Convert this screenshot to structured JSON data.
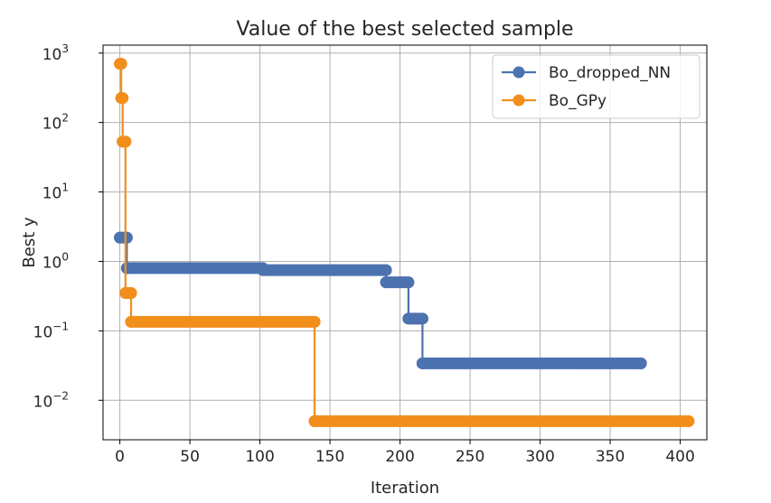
{
  "chart_data": {
    "type": "line",
    "title": "Value of the best selected sample",
    "xlabel": "Iteration",
    "ylabel": "Best y",
    "xlim": [
      -12,
      419
    ],
    "ylim": [
      0.0027,
      1300
    ],
    "yscale": "log",
    "grid": true,
    "legend_position": "top-right",
    "x_ticks": [
      0,
      50,
      100,
      150,
      200,
      250,
      300,
      350,
      400
    ],
    "x_tick_labels": [
      "0",
      "50",
      "100",
      "150",
      "200",
      "250",
      "300",
      "350",
      "400"
    ],
    "y_ticks": [
      {
        "value": 0.01,
        "base": "10",
        "exp": "−2"
      },
      {
        "value": 0.1,
        "base": "10",
        "exp": "−1"
      },
      {
        "value": 1,
        "base": "10",
        "exp": "0"
      },
      {
        "value": 10,
        "base": "10",
        "exp": "1"
      },
      {
        "value": 100,
        "base": "10",
        "exp": "2"
      },
      {
        "value": 1000,
        "base": "10",
        "exp": "3"
      }
    ],
    "series": [
      {
        "name": "Bo_dropped_NN",
        "color": "#4c72b0",
        "segments": [
          {
            "x_from": 0,
            "x_to": 5,
            "y": 2.2
          },
          {
            "x_from": 5,
            "x_to": 102,
            "y": 0.8
          },
          {
            "x_from": 102,
            "x_to": 190,
            "y": 0.75
          },
          {
            "x_from": 190,
            "x_to": 206,
            "y": 0.5
          },
          {
            "x_from": 206,
            "x_to": 216,
            "y": 0.15
          },
          {
            "x_from": 216,
            "x_to": 372,
            "y": 0.034
          }
        ]
      },
      {
        "name": "Bo_GPy",
        "color": "#f28e1c",
        "segments": [
          {
            "x_from": 0,
            "x_to": 1,
            "y": 700
          },
          {
            "x_from": 1,
            "x_to": 2,
            "y": 225
          },
          {
            "x_from": 2,
            "x_to": 4,
            "y": 53
          },
          {
            "x_from": 4,
            "x_to": 8,
            "y": 0.35
          },
          {
            "x_from": 8,
            "x_to": 139,
            "y": 0.135
          },
          {
            "x_from": 139,
            "x_to": 406,
            "y": 0.005
          }
        ]
      }
    ]
  }
}
